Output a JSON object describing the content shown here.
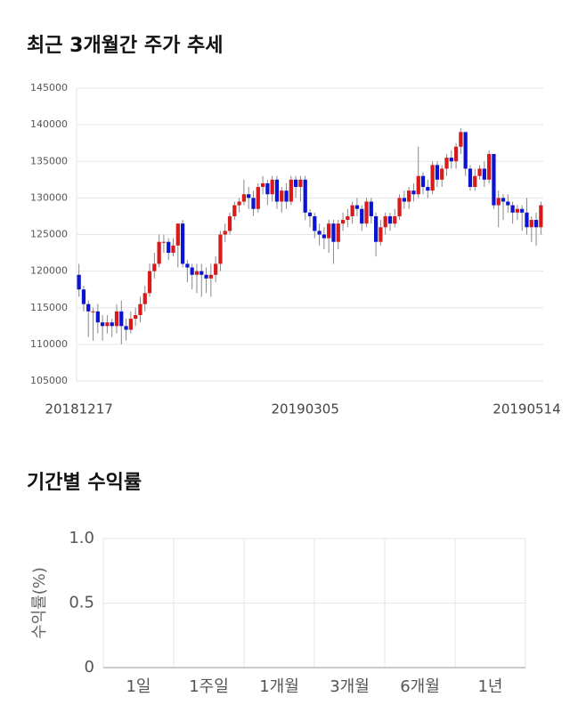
{
  "chart_data": [
    {
      "type": "candlestick",
      "title": "최근 3개월간 주가 추세",
      "categories": [
        "20181217",
        null,
        null,
        null,
        null,
        null,
        null,
        null,
        null,
        null,
        null,
        null,
        null,
        null,
        null,
        null,
        null,
        null,
        null,
        null,
        null,
        null,
        null,
        null,
        null,
        null,
        null,
        null,
        null,
        null,
        null,
        null,
        null,
        null,
        null,
        null,
        null,
        null,
        null,
        null,
        null,
        null,
        null,
        null,
        null,
        null,
        null,
        null,
        "20190305",
        null,
        null,
        null,
        null,
        null,
        null,
        null,
        null,
        null,
        null,
        null,
        null,
        null,
        null,
        null,
        null,
        null,
        null,
        null,
        null,
        null,
        null,
        null,
        null,
        null,
        null,
        null,
        null,
        null,
        null,
        null,
        null,
        null,
        null,
        null,
        null,
        null,
        null,
        null,
        null,
        null,
        null,
        null,
        null,
        null,
        null,
        "20190514",
        null,
        null,
        null
      ],
      "open": [
        119500,
        117500,
        115500,
        114500,
        114500,
        113000,
        112500,
        113000,
        112500,
        114500,
        112500,
        112000,
        113500,
        114000,
        115500,
        117000,
        120000,
        121000,
        124000,
        124000,
        122500,
        123500,
        126500,
        121000,
        120500,
        119500,
        120000,
        119500,
        119000,
        119500,
        121000,
        125000,
        125500,
        127500,
        129000,
        129500,
        130500,
        130000,
        128500,
        131500,
        132000,
        130500,
        132500,
        129500,
        131000,
        129500,
        132500,
        131500,
        132500,
        128000,
        127500,
        125500,
        125000,
        124500,
        126500,
        124000,
        126500,
        127000,
        127500,
        129000,
        128500,
        126500,
        129500,
        127500,
        124000,
        126000,
        127500,
        126500,
        127500,
        130000,
        129500,
        131000,
        130500,
        133000,
        131500,
        131000,
        134500,
        132500,
        134000,
        135500,
        135000,
        137000,
        139000,
        134000,
        131500,
        133000,
        134000,
        132500,
        136000,
        129000,
        130000,
        129500,
        129000,
        128000,
        128500,
        128000,
        126000,
        127000,
        126000
      ],
      "high": [
        121000,
        118000,
        116000,
        115000,
        115500,
        114000,
        114000,
        113500,
        115500,
        116000,
        113500,
        114500,
        115000,
        116500,
        118000,
        121000,
        122500,
        125000,
        125000,
        124500,
        124500,
        126500,
        127000,
        121500,
        121000,
        121000,
        121000,
        120500,
        121000,
        122000,
        125500,
        126500,
        128000,
        129500,
        130000,
        132500,
        131500,
        131000,
        132000,
        133000,
        132500,
        133000,
        133000,
        131500,
        132000,
        133000,
        133000,
        133000,
        133000,
        128500,
        128000,
        126500,
        126000,
        127000,
        127000,
        127000,
        128000,
        128500,
        129500,
        130000,
        129000,
        130000,
        130000,
        128000,
        127000,
        128000,
        128000,
        128500,
        130500,
        131000,
        131500,
        132000,
        137000,
        133500,
        132500,
        135000,
        135000,
        134500,
        136000,
        136500,
        137500,
        139500,
        139000,
        134500,
        134000,
        134500,
        135000,
        136500,
        136000,
        131000,
        130500,
        130500,
        129500,
        129000,
        129000,
        130000,
        127500,
        128000,
        129500
      ],
      "low": [
        116500,
        114500,
        111000,
        110500,
        111500,
        110500,
        111500,
        111000,
        111500,
        110000,
        110500,
        111500,
        112500,
        113000,
        114500,
        116500,
        119000,
        120500,
        122500,
        121500,
        122000,
        120500,
        120500,
        118500,
        117500,
        117000,
        116500,
        117000,
        116500,
        118500,
        120000,
        124000,
        125000,
        127000,
        128000,
        129000,
        128500,
        127500,
        128000,
        130500,
        129000,
        129500,
        128500,
        128000,
        128500,
        129000,
        130000,
        129500,
        127000,
        126000,
        124500,
        123500,
        123000,
        122500,
        121000,
        123000,
        125500,
        126000,
        126500,
        127500,
        125500,
        126000,
        126500,
        122000,
        123500,
        125000,
        125500,
        126000,
        127000,
        128500,
        128500,
        129500,
        130000,
        130500,
        130000,
        130500,
        131500,
        131500,
        133000,
        134000,
        134000,
        136000,
        133000,
        131000,
        131000,
        132500,
        131500,
        132000,
        128500,
        126000,
        127000,
        128000,
        126500,
        127000,
        125500,
        125000,
        124000,
        123500,
        125000
      ],
      "close": [
        117500,
        115500,
        114500,
        114500,
        113000,
        112500,
        113000,
        112500,
        114500,
        112500,
        112000,
        113500,
        114000,
        115500,
        117000,
        120000,
        121000,
        124000,
        124000,
        122500,
        123500,
        126500,
        121000,
        120500,
        119500,
        120000,
        119500,
        119000,
        119500,
        121000,
        125000,
        125500,
        127500,
        129000,
        129500,
        130500,
        130000,
        128500,
        131500,
        132000,
        130500,
        132500,
        129500,
        131000,
        129500,
        132500,
        131500,
        132500,
        128000,
        127500,
        125500,
        125000,
        124500,
        126500,
        124000,
        126500,
        127000,
        127500,
        129000,
        128500,
        126500,
        129500,
        127500,
        124000,
        126000,
        127500,
        126500,
        127500,
        130000,
        129500,
        131000,
        130500,
        133000,
        131500,
        131000,
        134500,
        132500,
        134000,
        135500,
        135000,
        137000,
        139000,
        134000,
        131500,
        133000,
        134000,
        132500,
        136000,
        129000,
        130000,
        129500,
        129000,
        128000,
        128500,
        128000,
        126000,
        127000,
        126000,
        129000
      ],
      "up_color": "#d71a1a",
      "down_color": "#0b14d0",
      "ylim": [
        105000,
        145000
      ],
      "yticks": [
        105000,
        110000,
        115000,
        120000,
        125000,
        130000,
        135000,
        140000,
        145000
      ],
      "grid": true
    },
    {
      "type": "bar",
      "title": "기간별 수익률",
      "ylabel": "수익률(%)",
      "categories": [
        "1일",
        "1주일",
        "1개월",
        "3개월",
        "6개월",
        "1년"
      ],
      "values": [
        null,
        null,
        null,
        null,
        null,
        null
      ],
      "color": "#4a78c0",
      "ylim": [
        0,
        1
      ],
      "yticks": [
        0,
        0.5,
        {
          "value": 1,
          "label": "1.0"
        }
      ],
      "grid": true
    }
  ]
}
